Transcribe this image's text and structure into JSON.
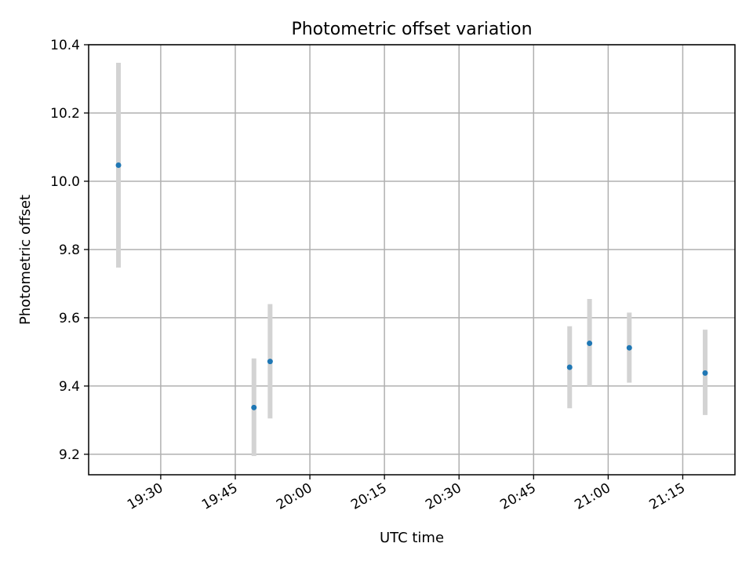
{
  "chart_data": {
    "type": "scatter",
    "title": "Photometric offset variation",
    "xlabel": "UTC time",
    "ylabel": "Photometric offset",
    "x_ticks": [
      "19:30",
      "19:45",
      "20:00",
      "20:15",
      "20:30",
      "20:45",
      "21:00",
      "21:15"
    ],
    "y_ticks": [
      "9.2",
      "9.4",
      "9.6",
      "9.8",
      "10.0",
      "10.2",
      "10.4"
    ],
    "xlim": [
      "19:15:30",
      "21:25:30"
    ],
    "ylim": [
      9.14,
      10.4
    ],
    "grid": true,
    "point_color": "#1f77b4",
    "errorbar_color": "#d3d3d3",
    "series": [
      {
        "points": [
          {
            "x": "19:21:30",
            "y": 10.047,
            "yerr_low": 9.747,
            "yerr_high": 10.347
          },
          {
            "x": "19:48:45",
            "y": 9.337,
            "yerr_low": 9.195,
            "yerr_high": 9.481
          },
          {
            "x": "19:52:00",
            "y": 9.472,
            "yerr_low": 9.305,
            "yerr_high": 9.64
          },
          {
            "x": "20:52:15",
            "y": 9.455,
            "yerr_low": 9.335,
            "yerr_high": 9.575
          },
          {
            "x": "20:56:15",
            "y": 9.525,
            "yerr_low": 9.4,
            "yerr_high": 9.655
          },
          {
            "x": "21:04:15",
            "y": 9.512,
            "yerr_low": 9.41,
            "yerr_high": 9.615
          },
          {
            "x": "21:19:30",
            "y": 9.438,
            "yerr_low": 9.315,
            "yerr_high": 9.565
          }
        ]
      }
    ]
  }
}
